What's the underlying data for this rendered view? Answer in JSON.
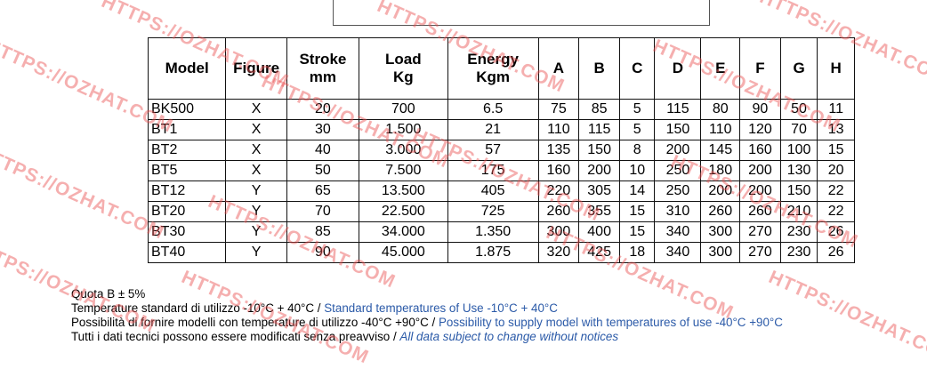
{
  "table": {
    "headers": [
      "Model",
      "Figure",
      "Stroke\nmm",
      "Load\nKg",
      "Energy\nKgm",
      "A",
      "B",
      "C",
      "D",
      "E",
      "F",
      "G",
      "H"
    ],
    "rows": [
      [
        "BK500",
        "X",
        "20",
        "700",
        "6.5",
        "75",
        "85",
        "5",
        "115",
        "80",
        "90",
        "50",
        "11"
      ],
      [
        "BT1",
        "X",
        "30",
        "1.500",
        "21",
        "110",
        "115",
        "5",
        "150",
        "110",
        "120",
        "70",
        "13"
      ],
      [
        "BT2",
        "X",
        "40",
        "3.000",
        "57",
        "135",
        "150",
        "8",
        "200",
        "145",
        "160",
        "100",
        "15"
      ],
      [
        "BT5",
        "X",
        "50",
        "7.500",
        "175",
        "160",
        "200",
        "10",
        "250",
        "180",
        "200",
        "130",
        "20"
      ],
      [
        "BT12",
        "Y",
        "65",
        "13.500",
        "405",
        "220",
        "305",
        "14",
        "250",
        "200",
        "200",
        "150",
        "22"
      ],
      [
        "BT20",
        "Y",
        "70",
        "22.500",
        "725",
        "260",
        "355",
        "15",
        "310",
        "260",
        "260",
        "210",
        "22"
      ],
      [
        "BT30",
        "Y",
        "85",
        "34.000",
        "1.350",
        "300",
        "400",
        "15",
        "340",
        "300",
        "270",
        "230",
        "26"
      ],
      [
        "BT40",
        "Y",
        "90",
        "45.000",
        "1.875",
        "320",
        "425",
        "18",
        "340",
        "300",
        "270",
        "230",
        "26"
      ]
    ]
  },
  "notes": {
    "quota": "Quota B ± 5%",
    "temp_it": "Temperature standard di utilizzo -10°C + 40°C / ",
    "temp_en": "Standard temperatures of Use -10°C + 40°C",
    "poss_it": "Possibilità di fornire modelli con temperature di utilizzo -40°C +90°C / ",
    "poss_en": "Possibility to supply model with temperatures of use -40°C +90°C",
    "data_it": "Tutti i dati tecnici possono essere modificati senza preavviso / ",
    "data_en": "All data subject to change without notices"
  },
  "watermark": {
    "text": "HTTPS://OZHAT.COM",
    "color": "#eb5050"
  }
}
